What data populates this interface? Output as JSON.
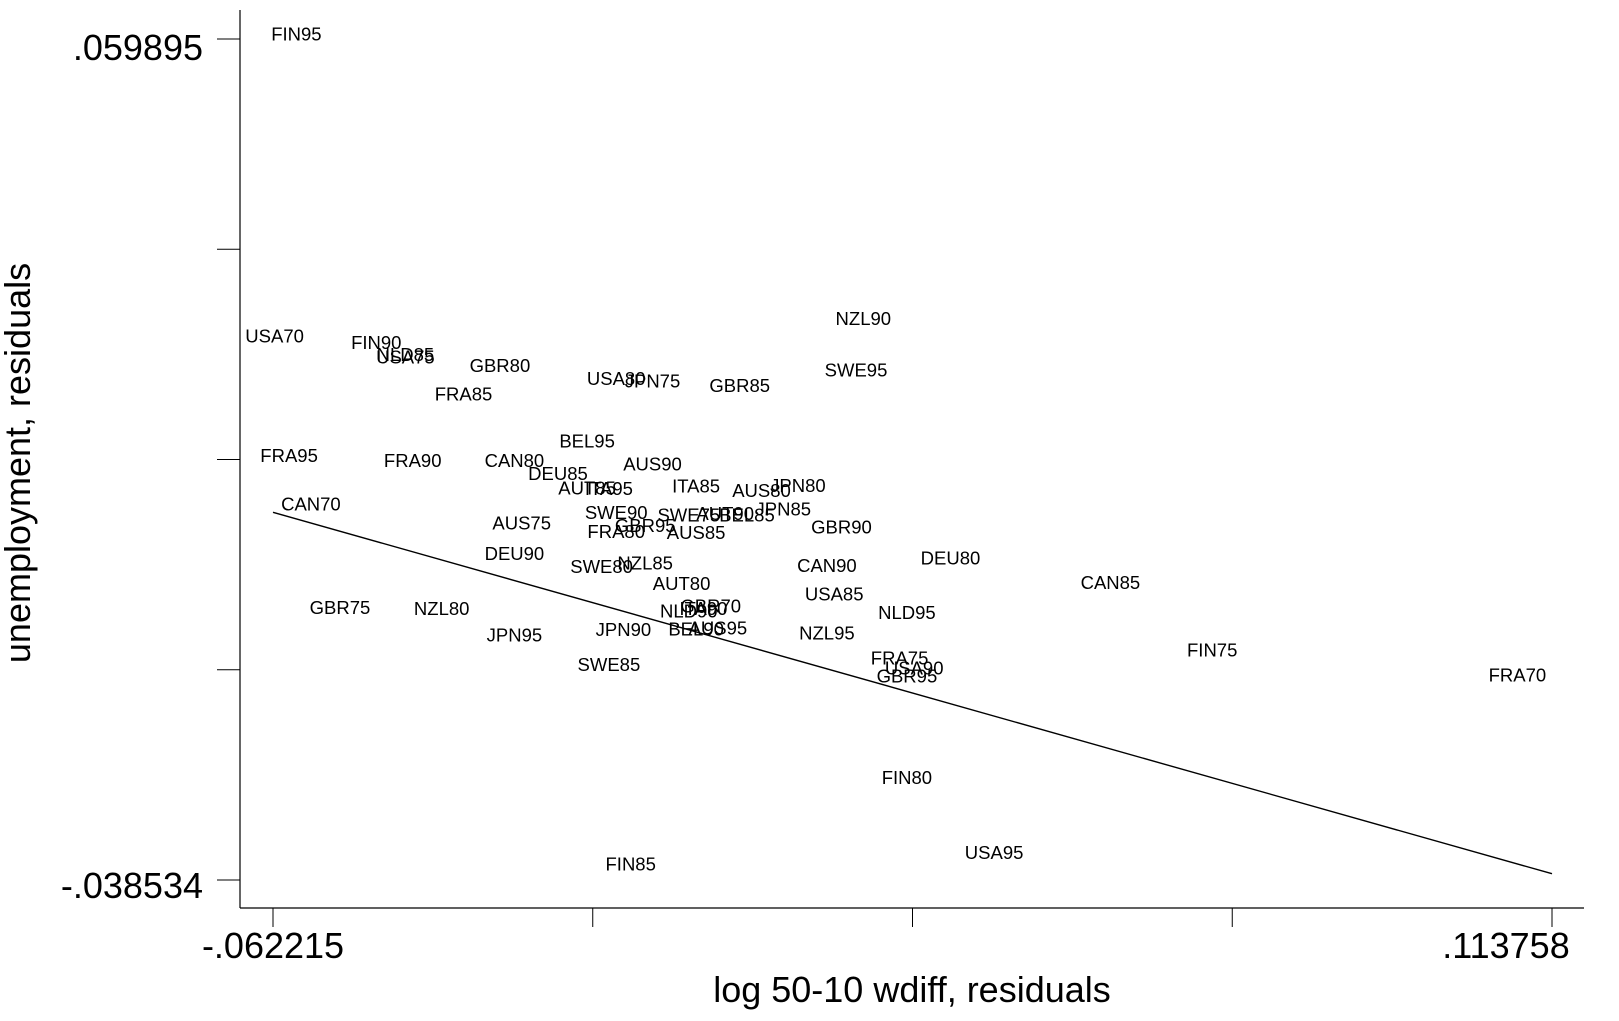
{
  "chart_data": {
    "type": "scatter",
    "title": "",
    "xlabel": "log 50-10 wdiff, residuals",
    "ylabel": "unemployment, residuals",
    "xlim": [
      -0.062215,
      0.113758
    ],
    "ylim": [
      -0.038534,
      0.059895
    ],
    "x_tick_labels": [
      ".113758",
      "-.062215"
    ],
    "y_tick_labels": [
      ".059895",
      "-.038534"
    ],
    "grid": false,
    "fit_line": {
      "x": [
        -0.062215,
        0.113758
      ],
      "y": [
        0.0045,
        -0.0378
      ]
    },
    "points": [
      {
        "label": "FIN95",
        "x": -0.059,
        "y": 0.0604
      },
      {
        "label": "USA70",
        "x": -0.062,
        "y": 0.0251
      },
      {
        "label": "FIN90",
        "x": -0.048,
        "y": 0.0243
      },
      {
        "label": "NLD85",
        "x": -0.044,
        "y": 0.0229
      },
      {
        "label": "USA75",
        "x": -0.044,
        "y": 0.0226
      },
      {
        "label": "GBR80",
        "x": -0.031,
        "y": 0.0216
      },
      {
        "label": "FRA85",
        "x": -0.036,
        "y": 0.0183
      },
      {
        "label": "USA80",
        "x": -0.015,
        "y": 0.0201
      },
      {
        "label": "JPN75",
        "x": -0.01,
        "y": 0.0198
      },
      {
        "label": "GBR85",
        "x": 0.002,
        "y": 0.0193
      },
      {
        "label": "NZL90",
        "x": 0.019,
        "y": 0.0271
      },
      {
        "label": "SWE95",
        "x": 0.018,
        "y": 0.0211
      },
      {
        "label": "BEL95",
        "x": -0.019,
        "y": 0.0128
      },
      {
        "label": "FRA95",
        "x": -0.06,
        "y": 0.0111
      },
      {
        "label": "FRA90",
        "x": -0.043,
        "y": 0.0105
      },
      {
        "label": "CAN80",
        "x": -0.029,
        "y": 0.0105
      },
      {
        "label": "DEU85",
        "x": -0.023,
        "y": 0.009
      },
      {
        "label": "AUS90",
        "x": -0.01,
        "y": 0.0101
      },
      {
        "label": "AUT85",
        "x": -0.019,
        "y": 0.0073
      },
      {
        "label": "ITA95",
        "x": -0.016,
        "y": 0.0072
      },
      {
        "label": "ITA85",
        "x": -0.004,
        "y": 0.0075
      },
      {
        "label": "AUS80",
        "x": 0.005,
        "y": 0.007
      },
      {
        "label": "JPN80",
        "x": 0.01,
        "y": 0.0076
      },
      {
        "label": "CAN70",
        "x": -0.057,
        "y": 0.0054
      },
      {
        "label": "JPN85",
        "x": 0.008,
        "y": 0.0048
      },
      {
        "label": "SWE90",
        "x": -0.015,
        "y": 0.0044
      },
      {
        "label": "SWE75",
        "x": -0.005,
        "y": 0.0041
      },
      {
        "label": "AUT90",
        "x": 0.0,
        "y": 0.0043
      },
      {
        "label": "BEL85",
        "x": 0.003,
        "y": 0.0041
      },
      {
        "label": "GBR95",
        "x": -0.011,
        "y": 0.0029
      },
      {
        "label": "FRA80",
        "x": -0.015,
        "y": 0.0022
      },
      {
        "label": "AUS85",
        "x": -0.004,
        "y": 0.0021
      },
      {
        "label": "AUS75",
        "x": -0.028,
        "y": 0.0032
      },
      {
        "label": "GBR90",
        "x": 0.016,
        "y": 0.0027
      },
      {
        "label": "DEU90",
        "x": -0.029,
        "y": -0.0004
      },
      {
        "label": "SWE80",
        "x": -0.017,
        "y": -0.0019
      },
      {
        "label": "NZL85",
        "x": -0.011,
        "y": -0.0015
      },
      {
        "label": "CAN90",
        "x": 0.014,
        "y": -0.0018
      },
      {
        "label": "DEU80",
        "x": 0.031,
        "y": -0.0009
      },
      {
        "label": "CAN85",
        "x": 0.053,
        "y": -0.0038
      },
      {
        "label": "AUT80",
        "x": -0.006,
        "y": -0.0039
      },
      {
        "label": "USA85",
        "x": 0.015,
        "y": -0.0051
      },
      {
        "label": "GBR75",
        "x": -0.053,
        "y": -0.0067
      },
      {
        "label": "NZL80",
        "x": -0.039,
        "y": -0.0068
      },
      {
        "label": "GBR70",
        "x": -0.002,
        "y": -0.0065
      },
      {
        "label": "ITA90",
        "x": -0.003,
        "y": -0.0068
      },
      {
        "label": "NLD90",
        "x": -0.005,
        "y": -0.0071
      },
      {
        "label": "NLD95",
        "x": 0.025,
        "y": -0.0073
      },
      {
        "label": "JPN95",
        "x": -0.029,
        "y": -0.0099
      },
      {
        "label": "JPN90",
        "x": -0.014,
        "y": -0.0093
      },
      {
        "label": "BEL90",
        "x": -0.004,
        "y": -0.0092
      },
      {
        "label": "AUS95",
        "x": -0.001,
        "y": -0.0091
      },
      {
        "label": "NZL95",
        "x": 0.014,
        "y": -0.0097
      },
      {
        "label": "SWE85",
        "x": -0.016,
        "y": -0.0134
      },
      {
        "label": "FRA75",
        "x": 0.024,
        "y": -0.0126
      },
      {
        "label": "USA90",
        "x": 0.026,
        "y": -0.0138
      },
      {
        "label": "GBR95",
        "x": 0.025,
        "y": -0.0147
      },
      {
        "label": "FIN75",
        "x": 0.067,
        "y": -0.0117
      },
      {
        "label": "FRA70",
        "x": 0.109,
        "y": -0.0146
      },
      {
        "label": "FIN80",
        "x": 0.025,
        "y": -0.0266
      },
      {
        "label": "USA95",
        "x": 0.037,
        "y": -0.0354
      },
      {
        "label": "FIN85",
        "x": -0.013,
        "y": -0.0367
      }
    ]
  }
}
